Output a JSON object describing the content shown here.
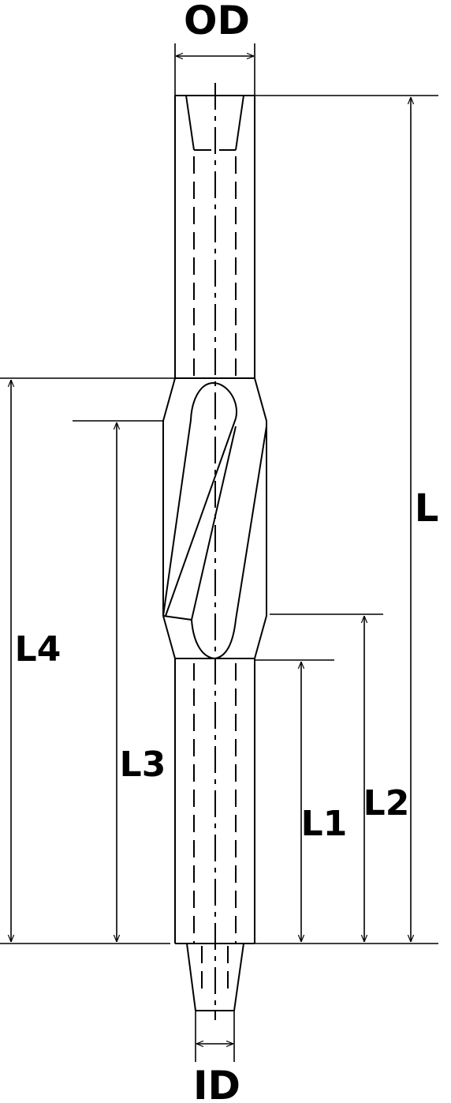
{
  "labels": {
    "od": "OD",
    "id": "ID",
    "l": "L",
    "l1": "L1",
    "l2": "L2",
    "l3": "L3",
    "l4": "L4"
  }
}
